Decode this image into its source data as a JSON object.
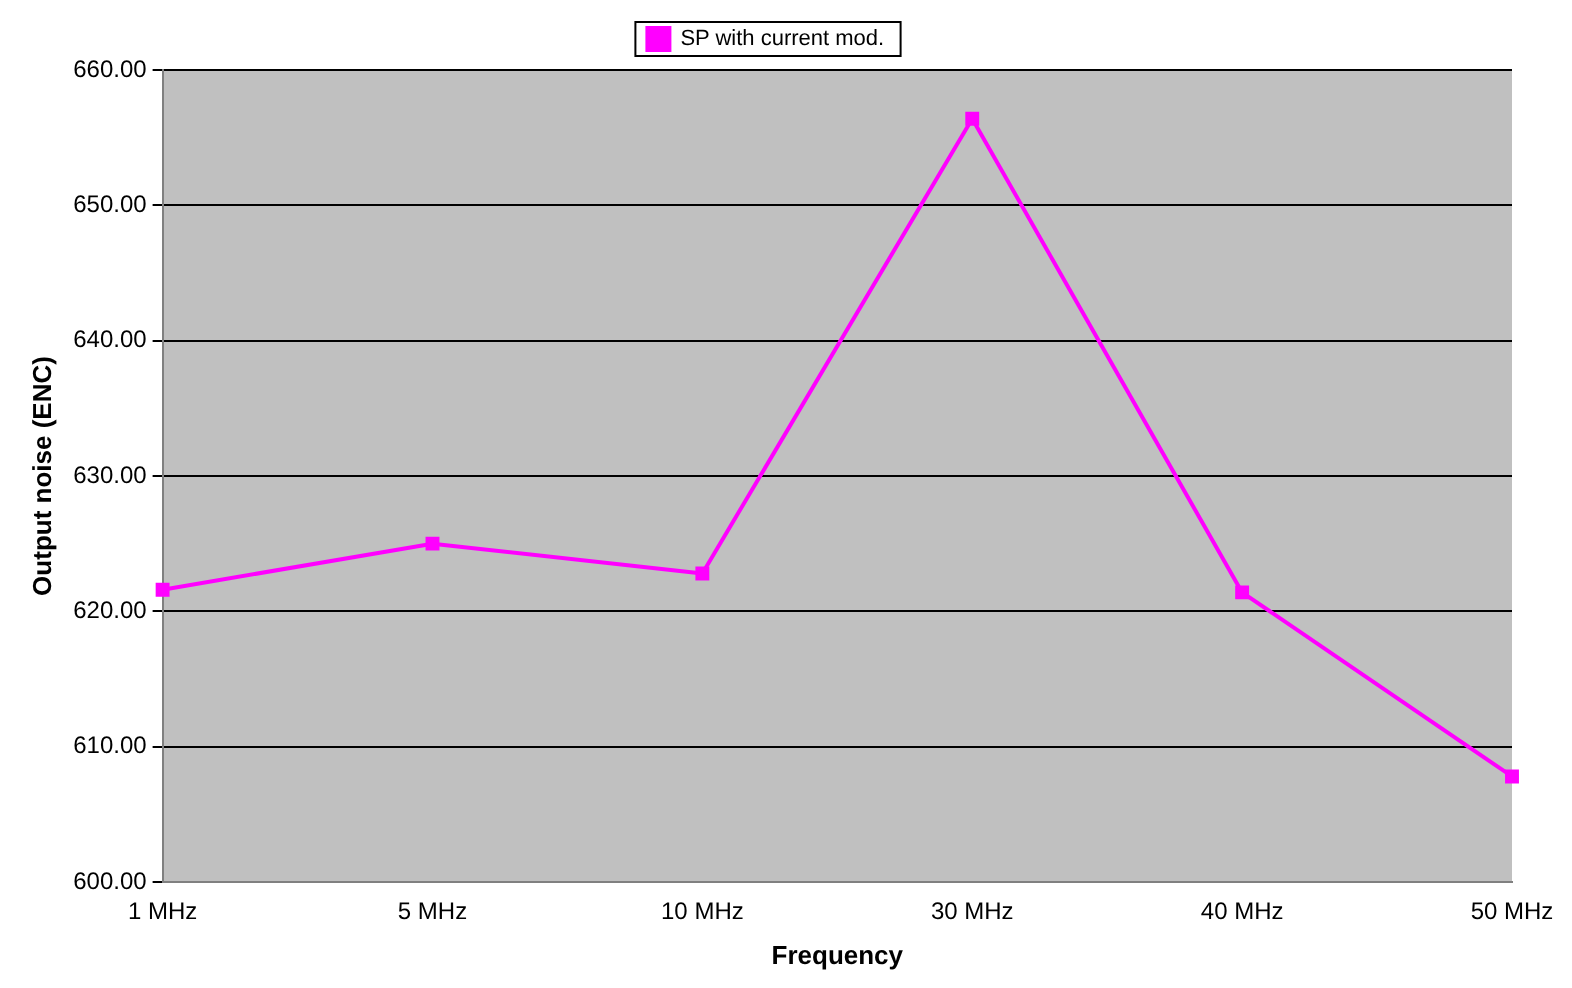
{
  "chart_data": {
    "type": "line",
    "xlabel": "Frequency",
    "ylabel": "Output noise (ENC)",
    "categories": [
      "1 MHz",
      "5 MHz",
      "10 MHz",
      "30 MHz",
      "40 MHz",
      "50 MHz"
    ],
    "series": [
      {
        "name": "SP with current mod.",
        "color": "#ff00ff",
        "values": [
          621.6,
          625.0,
          622.8,
          656.4,
          621.4,
          607.8
        ]
      }
    ],
    "ylim": [
      600,
      660
    ],
    "yticks": [
      {
        "value": 600,
        "label": "600.00"
      },
      {
        "value": 610,
        "label": "610.00"
      },
      {
        "value": 620,
        "label": "620.00"
      },
      {
        "value": 630,
        "label": "630.00"
      },
      {
        "value": 640,
        "label": "640.00"
      },
      {
        "value": 650,
        "label": "650.00"
      },
      {
        "value": 660,
        "label": "660.00"
      }
    ],
    "grid": "y",
    "legend": "top",
    "marker": "square",
    "line_style": "solid"
  }
}
